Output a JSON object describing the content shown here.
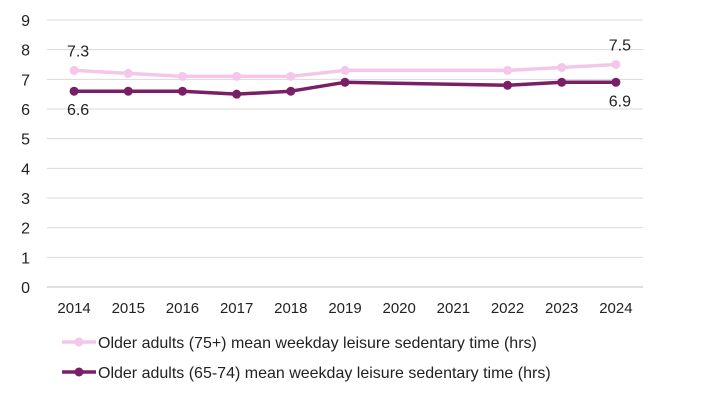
{
  "chart_data": {
    "type": "line",
    "title": "",
    "xlabel": "",
    "ylabel": "",
    "categories": [
      "2014",
      "2015",
      "2016",
      "2017",
      "2018",
      "2019",
      "2020",
      "2021",
      "2022",
      "2023",
      "2024"
    ],
    "ylim": [
      0,
      9
    ],
    "yticks": [
      "0",
      "1",
      "2",
      "3",
      "4",
      "5",
      "6",
      "7",
      "8",
      "9"
    ],
    "grid": true,
    "legend": "bottom",
    "series": [
      {
        "name": "Older adults (75+) mean weekday leisure sedentary time (hrs)",
        "color": "#f4c7ea",
        "values": [
          7.3,
          7.2,
          7.1,
          7.1,
          7.1,
          7.3,
          null,
          null,
          7.3,
          7.4,
          7.5
        ],
        "labels": {
          "0": "7.3",
          "10": "7.5"
        }
      },
      {
        "name": "Older adults (65-74) mean weekday leisure sedentary time (hrs)",
        "color": "#7a1f66",
        "values": [
          6.6,
          6.6,
          6.6,
          6.5,
          6.6,
          6.9,
          null,
          null,
          6.8,
          6.9,
          6.9
        ],
        "labels": {
          "0": "6.6",
          "10": "6.9"
        }
      }
    ]
  }
}
